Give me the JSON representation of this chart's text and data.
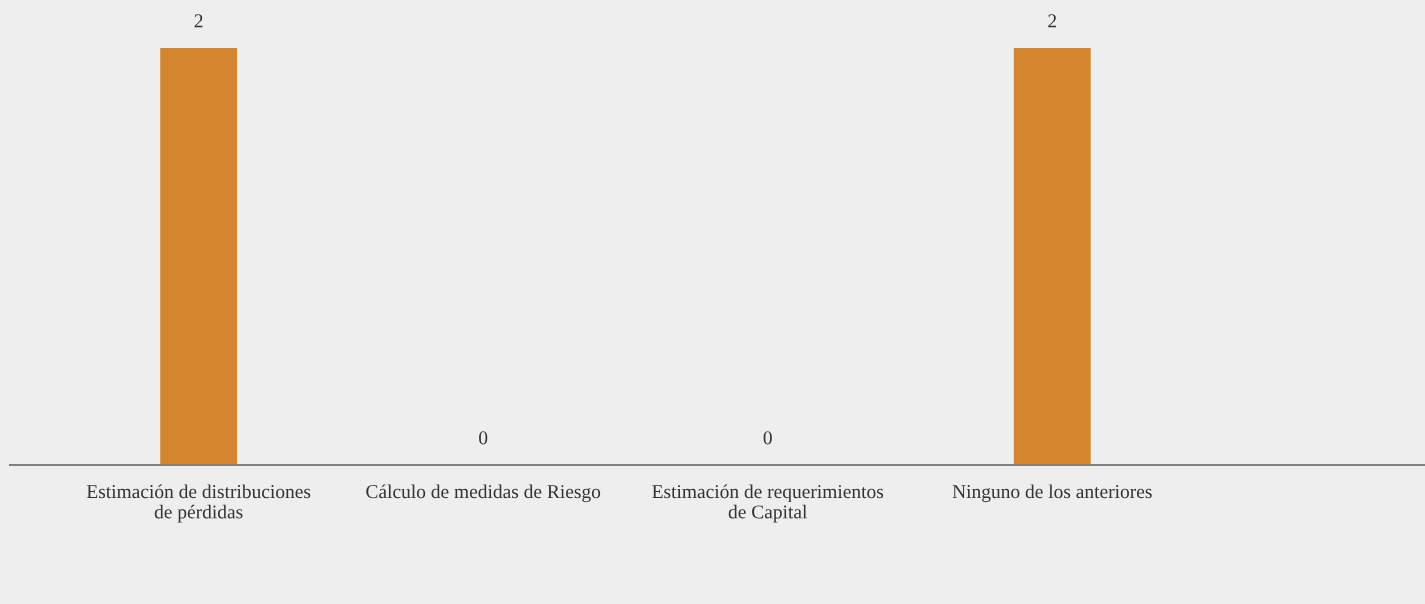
{
  "chart_data": {
    "type": "bar",
    "categories": [
      "Estimación de distribuciones\nde pérdidas",
      "Cálculo de medidas de Riesgo",
      "Estimación de requerimientos\nde Capital",
      "Ninguno de los anteriores"
    ],
    "values": [
      2,
      0,
      0,
      2
    ],
    "color": "#d4862e",
    "ylim": [
      0,
      2
    ],
    "tick_labels": "x",
    "data_labels": true,
    "grid": false,
    "legend": false
  }
}
